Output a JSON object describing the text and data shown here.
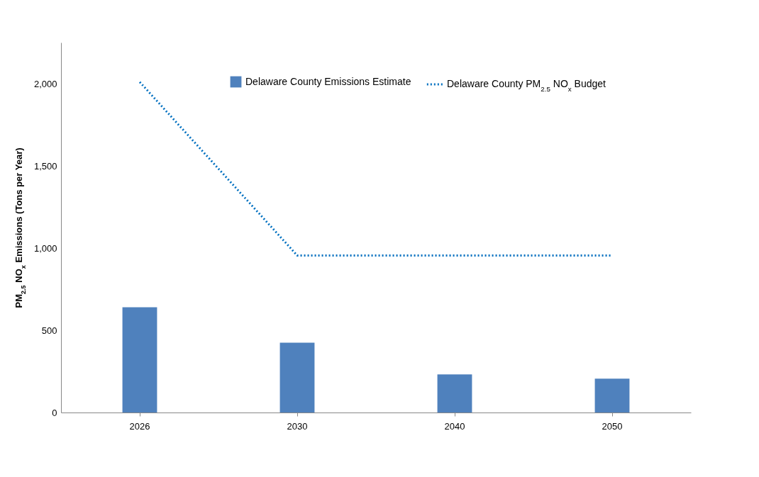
{
  "chart_data": {
    "type": "bar",
    "ylabel": "PM$_{2.5}$ NO$_{x}$ Emissions (Tons per Year)",
    "categories": [
      "2026",
      "2030",
      "2040",
      "2050"
    ],
    "series": [
      {
        "name": "Delaware County Emissions Estimate",
        "color": "#4f81bd",
        "values": [
          640,
          425,
          232,
          206
        ]
      },
      {
        "name": "Delaware County PM$_{2.5}$ NO$_{x}$ Budget",
        "type": "line",
        "color": "#0070c0",
        "line_style": "dotted",
        "values": [
          2010,
          955,
          955,
          955
        ]
      }
    ],
    "ylim": [
      0,
      2250
    ],
    "yticks": [
      0,
      500,
      {
        "value": 1000,
        "label": "1,000"
      },
      {
        "value": 1500,
        "label": "1,500"
      },
      {
        "value": 2000,
        "label": "2,000"
      }
    ],
    "grid": false,
    "legend": "top right"
  }
}
